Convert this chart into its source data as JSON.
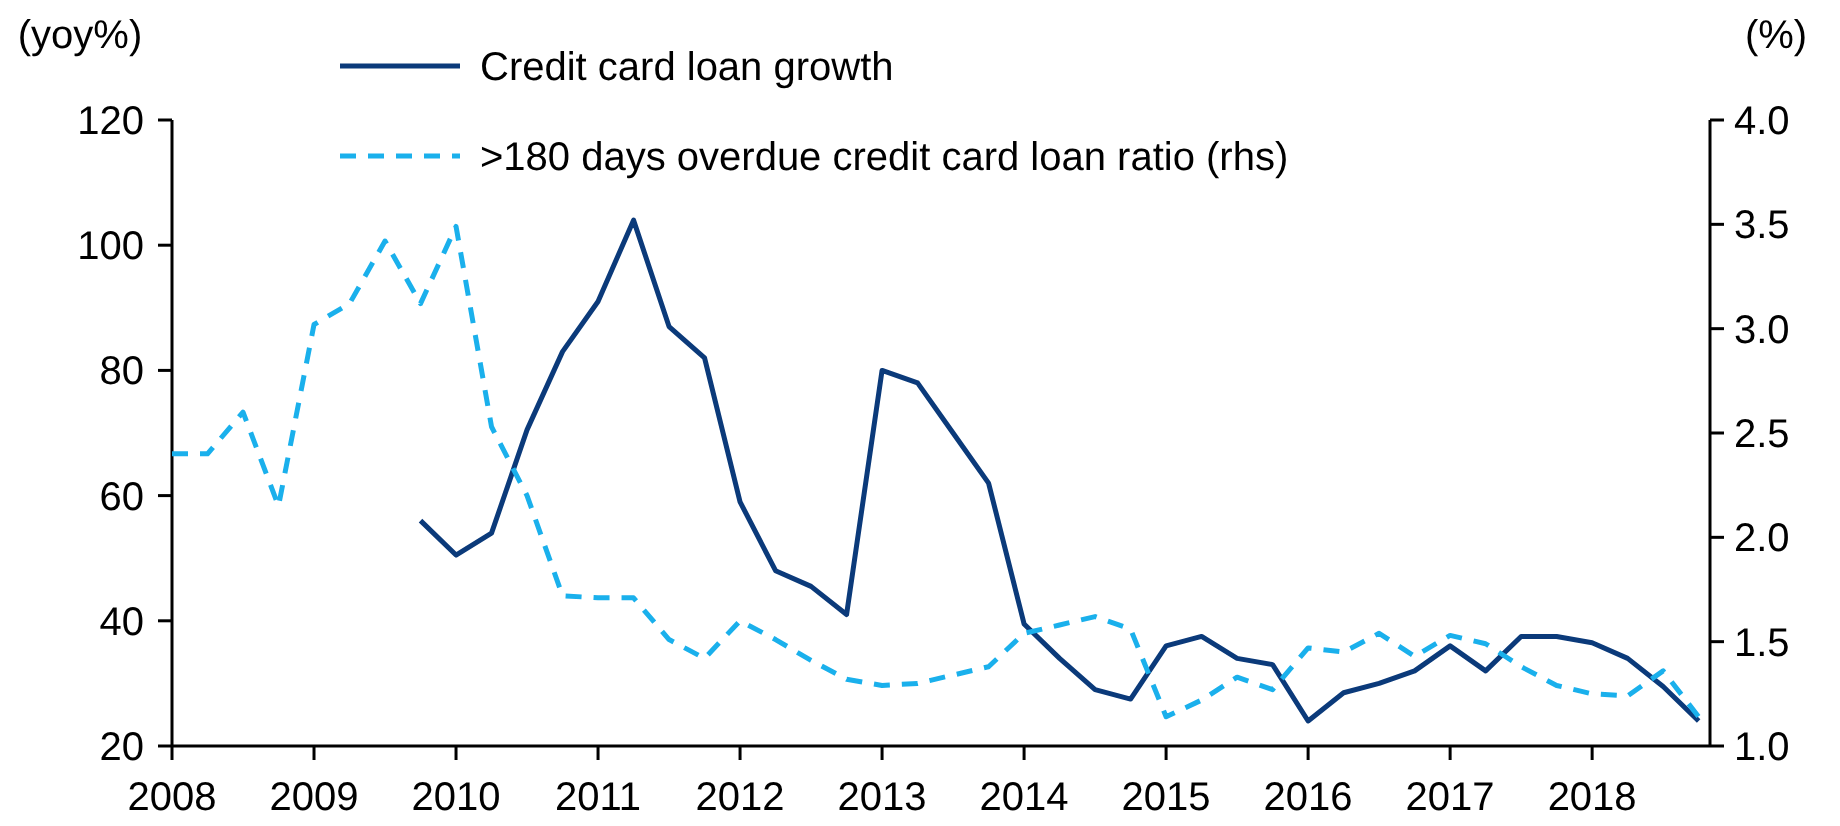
{
  "chart_data": {
    "type": "line",
    "ylabel": "(yoy%)",
    "y2label": "(%)",
    "xlim": [
      2008,
      2018.83
    ],
    "xticks": [
      2008,
      2009,
      2010,
      2011,
      2012,
      2013,
      2014,
      2015,
      2016,
      2017,
      2018
    ],
    "ylim": [
      20,
      120
    ],
    "yticks": [
      20,
      40,
      60,
      80,
      100,
      120
    ],
    "y2lim": [
      1.0,
      4.0
    ],
    "y2ticks": [
      {
        "value": 1.0,
        "label": "1.0"
      },
      {
        "value": 1.5,
        "label": "1.5"
      },
      {
        "value": 2.0,
        "label": "2.0"
      },
      {
        "value": 2.5,
        "label": "2.5"
      },
      {
        "value": 3.0,
        "label": "3.0"
      },
      {
        "value": 3.5,
        "label": "3.5"
      },
      {
        "value": 4.0,
        "label": "4.0"
      }
    ],
    "grid": false,
    "legend": "top",
    "marker": "none",
    "series": [
      {
        "name": "Credit card loan growth",
        "color": "#0b3a7a",
        "line_style": "solid",
        "x": [
          2009.75,
          2010,
          2010.25,
          2010.5,
          2010.75,
          2011,
          2011.25,
          2011.5,
          2011.75,
          2012,
          2012.25,
          2012.5,
          2012.75,
          2013,
          2013.25,
          2013.5,
          2013.75,
          2014,
          2014.25,
          2014.5,
          2014.75,
          2015,
          2015.25,
          2015.5,
          2015.75,
          2016,
          2016.25,
          2016.5,
          2016.75,
          2017,
          2017.25,
          2017.5,
          2017.75,
          2018,
          2018.25,
          2018.5,
          2018.75
        ],
        "values": [
          56,
          50.5,
          54,
          70.5,
          83,
          91,
          104,
          87,
          82,
          59,
          48,
          45.5,
          41,
          80,
          78,
          70,
          62,
          39.5,
          34,
          29,
          27.5,
          36,
          37.5,
          34,
          33,
          24,
          28.5,
          30,
          32,
          36,
          32,
          37.5,
          37.5,
          36.5,
          34,
          29.5,
          24
        ]
      },
      {
        "name": ">180 days overdue credit card loan ratio (rhs)",
        "color": "#1ab0ec",
        "line_style": "dashed",
        "axis": "y2",
        "x": [
          2008,
          2008.25,
          2008.5,
          2008.75,
          2009,
          2009.25,
          2009.5,
          2009.75,
          2010,
          2010.25,
          2010.5,
          2010.75,
          2011,
          2011.25,
          2011.5,
          2011.75,
          2012,
          2012.25,
          2012.5,
          2012.75,
          2013,
          2013.25,
          2013.5,
          2013.75,
          2014,
          2014.25,
          2014.5,
          2014.75,
          2015,
          2015.25,
          2015.5,
          2015.75,
          2016,
          2016.25,
          2016.5,
          2016.75,
          2017,
          2017.25,
          2017.5,
          2017.75,
          2018,
          2018.25,
          2018.5,
          2018.75
        ],
        "values": [
          2.4,
          2.4,
          2.6,
          2.15,
          3.02,
          3.12,
          3.42,
          3.12,
          3.49,
          2.53,
          2.2,
          1.72,
          1.71,
          1.71,
          1.51,
          1.42,
          1.6,
          1.51,
          1.41,
          1.32,
          1.29,
          1.3,
          1.34,
          1.38,
          1.54,
          1.58,
          1.62,
          1.56,
          1.14,
          1.22,
          1.33,
          1.27,
          1.47,
          1.45,
          1.54,
          1.43,
          1.53,
          1.49,
          1.38,
          1.29,
          1.25,
          1.24,
          1.36,
          1.14
        ]
      }
    ]
  }
}
